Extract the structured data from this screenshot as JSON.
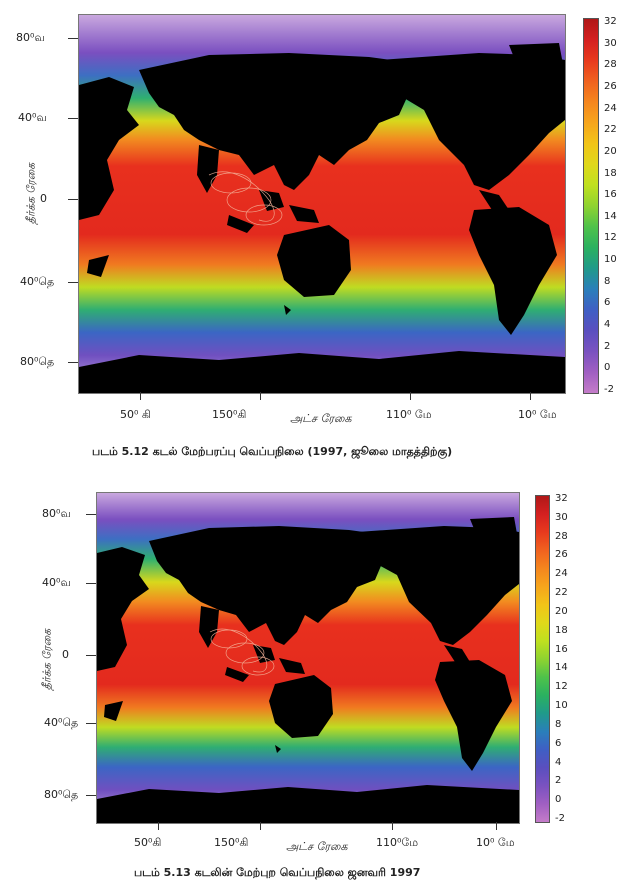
{
  "figures": [
    {
      "lat_labels": [
        "80⁰வ",
        "40⁰வ",
        "0",
        "40⁰தெ",
        "80⁰தெ"
      ],
      "lon_labels": [
        "50⁰ கி",
        "150⁰கி",
        "110⁰ மே",
        "10⁰ மே"
      ],
      "y_axis_title": "தீர்க்க ரேகை",
      "x_axis_title": "அட்ச ரேகை",
      "caption": "படம் 5.12  கடல் மேற்பரப்பு வெப்பநிலை (1997, ஜூலை மாதத்திற்கு)",
      "legend_ticks": [
        "32",
        "30",
        "28",
        "26",
        "24",
        "22",
        "20",
        "18",
        "16",
        "14",
        "12",
        "10",
        "8",
        "6",
        "4",
        "2",
        "0",
        "-2"
      ]
    },
    {
      "lat_labels": [
        "80⁰வ",
        "40⁰வ",
        "0",
        "40⁰தெ",
        "80⁰தெ"
      ],
      "lon_labels": [
        "50⁰கி",
        "150⁰கி",
        "110⁰மே",
        "10⁰ மே"
      ],
      "y_axis_title": "தீர்க்க ரேகை",
      "x_axis_title": "அட்ச ரேகை",
      "caption": "படம் 5.13 கடலின் மேற்புற வெப்பநிலை ஜனவரி 1997",
      "legend_ticks": [
        "32",
        "30",
        "28",
        "26",
        "24",
        "22",
        "20",
        "18",
        "16",
        "14",
        "12",
        "10",
        "8",
        "6",
        "4",
        "2",
        "0",
        "-2"
      ]
    }
  ],
  "legend_colors": [
    "#b01818",
    "#d42020",
    "#e83a1e",
    "#f0621f",
    "#f5861e",
    "#f6a51c",
    "#f2c418",
    "#e0d81a",
    "#bfe01f",
    "#8fd330",
    "#4fc24a",
    "#2bb160",
    "#209a8a",
    "#2a7fba",
    "#3f5fc4",
    "#5a4fbf",
    "#7a52c0",
    "#a05fc2",
    "#c47cc9"
  ],
  "land_color": "#000000"
}
